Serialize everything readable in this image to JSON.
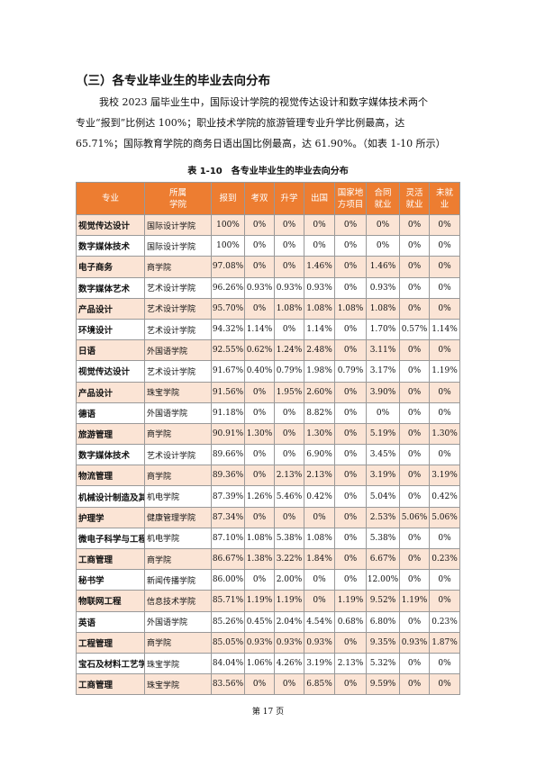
{
  "heading": "（三）各专业毕业生的毕业去向分布",
  "paragraph": [
    "我校 2023 届毕业生中，国际设计学院的视觉传达设计和数字媒体技术两个",
    "专业“报到”比例达 100%；职业技术学院的旅游管理专业升学比例最高，达",
    "65.71%；国际教育学院的商务日语出国比例最高，达 61.90%。（如表 1-10 所示）"
  ],
  "table": {
    "caption": "表 1-10　各专业毕业生的毕业去向分布",
    "header": [
      [
        "专业"
      ],
      [
        "所属",
        "学院"
      ],
      [
        "报到"
      ],
      [
        "考双"
      ],
      [
        "升学"
      ],
      [
        "出国"
      ],
      [
        "国家地",
        "方项目"
      ],
      [
        "合同",
        "就业"
      ],
      [
        "灵活",
        "就业"
      ],
      [
        "未就",
        "业"
      ]
    ],
    "rows": [
      [
        "视觉传达设计",
        "国际设计学院",
        "100%",
        "0%",
        "0%",
        "0%",
        "0%",
        "0%",
        "0%",
        "0%"
      ],
      [
        "数字媒体技术",
        "国际设计学院",
        "100%",
        "0%",
        "0%",
        "0%",
        "0%",
        "0%",
        "0%",
        "0%"
      ],
      [
        "电子商务",
        "商学院",
        "97.08%",
        "0%",
        "0%",
        "1.46%",
        "0%",
        "1.46%",
        "0%",
        "0%"
      ],
      [
        "数字媒体艺术",
        "艺术设计学院",
        "96.26%",
        "0.93%",
        "0.93%",
        "0.93%",
        "0%",
        "0.93%",
        "0%",
        "0%"
      ],
      [
        "产品设计",
        "艺术设计学院",
        "95.70%",
        "0%",
        "1.08%",
        "1.08%",
        "1.08%",
        "1.08%",
        "0%",
        "0%"
      ],
      [
        "环境设计",
        "艺术设计学院",
        "94.32%",
        "1.14%",
        "0%",
        "1.14%",
        "0%",
        "1.70%",
        "0.57%",
        "1.14%"
      ],
      [
        "日语",
        "外国语学院",
        "92.55%",
        "0.62%",
        "1.24%",
        "2.48%",
        "0%",
        "3.11%",
        "0%",
        "0%"
      ],
      [
        "视觉传达设计",
        "艺术设计学院",
        "91.67%",
        "0.40%",
        "0.79%",
        "1.98%",
        "0.79%",
        "3.17%",
        "0%",
        "1.19%"
      ],
      [
        "产品设计",
        "珠宝学院",
        "91.56%",
        "0%",
        "1.95%",
        "2.60%",
        "0%",
        "3.90%",
        "0%",
        "0%"
      ],
      [
        "德语",
        "外国语学院",
        "91.18%",
        "0%",
        "0%",
        "8.82%",
        "0%",
        "0%",
        "0%",
        "0%"
      ],
      [
        "旅游管理",
        "商学院",
        "90.91%",
        "1.30%",
        "0%",
        "1.30%",
        "0%",
        "5.19%",
        "0%",
        "1.30%"
      ],
      [
        "数字媒体技术",
        "艺术设计学院",
        "89.66%",
        "0%",
        "0%",
        "6.90%",
        "0%",
        "3.45%",
        "0%",
        "0%"
      ],
      [
        "物流管理",
        "商学院",
        "89.36%",
        "0%",
        "2.13%",
        "2.13%",
        "0%",
        "3.19%",
        "0%",
        "3.19%"
      ],
      [
        "机械设计制造及其自动化",
        "机电学院",
        "87.39%",
        "1.26%",
        "5.46%",
        "0.42%",
        "0%",
        "5.04%",
        "0%",
        "0.42%"
      ],
      [
        "护理学",
        "健康管理学院",
        "87.34%",
        "0%",
        "0%",
        "0%",
        "0%",
        "2.53%",
        "5.06%",
        "5.06%"
      ],
      [
        "微电子科学与工程",
        "机电学院",
        "87.10%",
        "1.08%",
        "5.38%",
        "1.08%",
        "0%",
        "5.38%",
        "0%",
        "0%"
      ],
      [
        "工商管理",
        "商学院",
        "86.67%",
        "1.38%",
        "3.22%",
        "1.84%",
        "0%",
        "6.67%",
        "0%",
        "0.23%"
      ],
      [
        "秘书学",
        "新闻传播学院",
        "86.00%",
        "0%",
        "2.00%",
        "0%",
        "0%",
        "12.00%",
        "0%",
        "0%"
      ],
      [
        "物联网工程",
        "信息技术学院",
        "85.71%",
        "1.19%",
        "1.19%",
        "0%",
        "1.19%",
        "9.52%",
        "1.19%",
        "0%"
      ],
      [
        "英语",
        "外国语学院",
        "85.26%",
        "0.45%",
        "2.04%",
        "4.54%",
        "0.68%",
        "6.80%",
        "0%",
        "0.23%"
      ],
      [
        "工程管理",
        "商学院",
        "85.05%",
        "0.93%",
        "0.93%",
        "0.93%",
        "0%",
        "9.35%",
        "0.93%",
        "1.87%"
      ],
      [
        "宝石及材料工艺学",
        "珠宝学院",
        "84.04%",
        "1.06%",
        "4.26%",
        "3.19%",
        "2.13%",
        "5.32%",
        "0%",
        "0%"
      ],
      [
        "工商管理",
        "珠宝学院",
        "83.56%",
        "0%",
        "0%",
        "6.85%",
        "0%",
        "9.59%",
        "0%",
        "0%"
      ]
    ]
  },
  "footer": "第 17 页"
}
